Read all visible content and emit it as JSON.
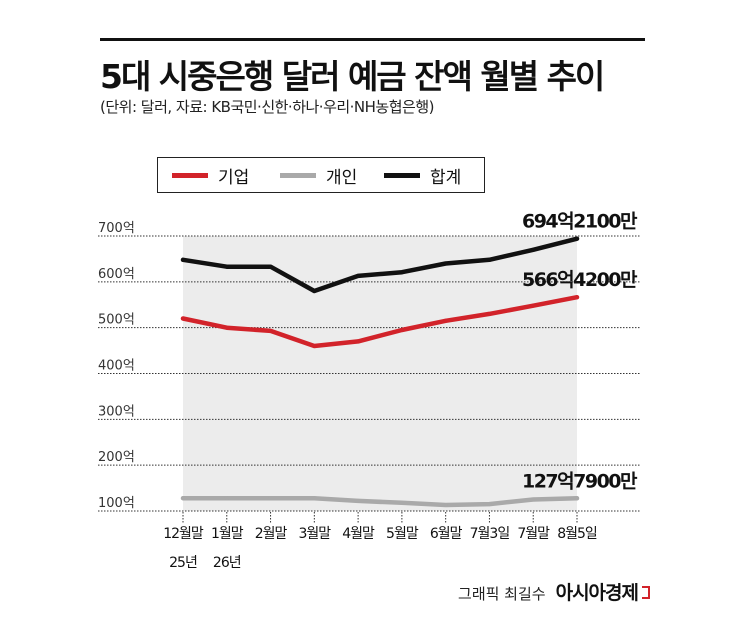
{
  "header": {
    "title": "5대 시중은행 달러 예금 잔액 월별 추이",
    "subtitle": "(단위: 달러, 자료: KB국민·신한·하나·우리·NH농협은행)"
  },
  "legend": [
    {
      "label": "기업",
      "color": "#d2232a"
    },
    {
      "label": "개인",
      "color": "#a9a9a9"
    },
    {
      "label": "합계",
      "color": "#111111"
    }
  ],
  "credit": {
    "graphic": "그래픽 최길수",
    "brand": "아시아경제"
  },
  "chart_data": {
    "type": "line",
    "categories": [
      "12월말",
      "1월말",
      "2월말",
      "3월말",
      "4월말",
      "5월말",
      "6월말",
      "7월3일",
      "7월말",
      "8월5일"
    ],
    "category_sublabels": [
      "25년",
      "26년",
      "",
      "",
      "",
      "",
      "",
      "",
      "",
      ""
    ],
    "y_ticks": [
      "100억",
      "200억",
      "300억",
      "400억",
      "500억",
      "600억",
      "700억"
    ],
    "ylim": [
      100,
      700
    ],
    "grid": true,
    "legend_position": "top",
    "series": [
      {
        "name": "기업",
        "color": "#d2232a",
        "values": [
          520,
          500,
          493,
          460,
          470,
          495,
          515,
          530,
          548,
          566.42
        ],
        "end_label": "566억4200만"
      },
      {
        "name": "개인",
        "color": "#a9a9a9",
        "values": [
          128,
          128,
          128,
          128,
          122,
          118,
          113,
          115,
          125,
          127.79
        ],
        "end_label": "127억7900만"
      },
      {
        "name": "합계",
        "color": "#111111",
        "values": [
          648,
          633,
          633,
          580,
          613,
          621,
          640,
          648,
          670,
          694.21
        ],
        "end_label": "694억2100만"
      }
    ]
  }
}
